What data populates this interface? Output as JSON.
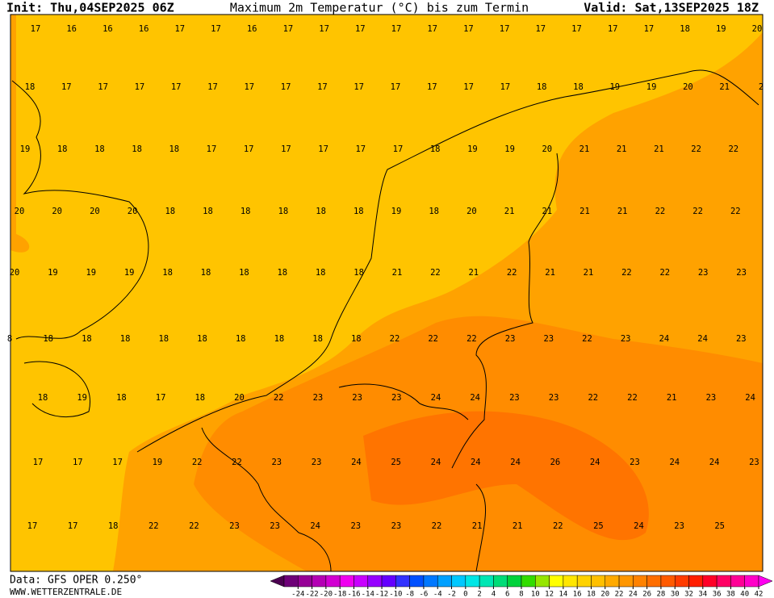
{
  "header": {
    "init": "Init: Thu,04SEP2025 06Z",
    "title": "Maximum 2m Temperatur (°C) bis zum Termin",
    "valid": "Valid: Sat,13SEP2025 18Z"
  },
  "map": {
    "rows": [
      [
        17,
        16,
        16,
        16,
        17,
        17,
        16,
        17,
        17,
        17,
        17,
        17,
        17,
        17,
        17,
        17,
        17,
        17,
        18,
        19,
        20
      ],
      [
        18,
        17,
        17,
        17,
        17,
        17,
        17,
        17,
        17,
        17,
        17,
        17,
        17,
        17,
        18,
        18,
        19,
        19,
        20,
        21,
        2
      ],
      [
        19,
        18,
        18,
        18,
        18,
        17,
        17,
        17,
        17,
        17,
        17,
        18,
        19,
        19,
        20,
        21,
        21,
        21,
        22,
        22
      ],
      [
        20,
        20,
        20,
        20,
        18,
        18,
        18,
        18,
        18,
        18,
        19,
        18,
        20,
        21,
        21,
        21,
        21,
        22,
        22,
        22
      ],
      [
        20,
        19,
        19,
        19,
        18,
        18,
        18,
        18,
        18,
        18,
        21,
        22,
        21,
        22,
        21,
        21,
        22,
        22,
        23,
        23
      ],
      [
        8,
        18,
        18,
        18,
        18,
        18,
        18,
        18,
        18,
        18,
        22,
        22,
        22,
        23,
        23,
        22,
        23,
        24,
        24,
        23,
        24
      ],
      [
        18,
        19,
        18,
        17,
        18,
        20,
        22,
        23,
        23,
        23,
        24,
        24,
        23,
        23,
        22,
        22,
        21,
        23,
        24
      ],
      [
        17,
        17,
        17,
        19,
        22,
        22,
        23,
        23,
        24,
        25,
        24,
        24,
        24,
        26,
        24,
        23,
        24,
        24,
        23
      ],
      [
        17,
        17,
        18,
        22,
        22,
        23,
        23,
        24,
        23,
        23,
        22,
        21,
        21,
        22,
        25,
        24,
        23,
        25
      ]
    ]
  },
  "legend": {
    "colors": [
      "#4b0050",
      "#6e0078",
      "#960096",
      "#b400b4",
      "#d200d2",
      "#f000f0",
      "#c800ff",
      "#9600ff",
      "#6400ff",
      "#3232ff",
      "#0050ff",
      "#0078ff",
      "#00a0ff",
      "#00c8ff",
      "#00e6e6",
      "#00e6b4",
      "#00dc78",
      "#00d23c",
      "#32dc00",
      "#96e600",
      "#ffff00",
      "#ffe600",
      "#ffd200",
      "#ffc000",
      "#ffaa00",
      "#ff9600",
      "#ff8200",
      "#ff6e00",
      "#ff5a00",
      "#ff3c00",
      "#ff1e00",
      "#ff0028",
      "#ff0064",
      "#ff0096",
      "#ff00c8",
      "#ff00f0"
    ],
    "ticks": [
      -24,
      -22,
      -20,
      -18,
      -16,
      -14,
      -12,
      -10,
      -8,
      -6,
      -4,
      -2,
      0,
      2,
      4,
      6,
      8,
      10,
      12,
      14,
      16,
      18,
      20,
      22,
      24,
      26,
      28,
      30,
      32,
      34,
      36,
      38,
      40,
      42
    ]
  },
  "footer": {
    "data": "Data: GFS OPER 0.250°",
    "site": "WWW.WETTERZENTRALE.DE"
  }
}
